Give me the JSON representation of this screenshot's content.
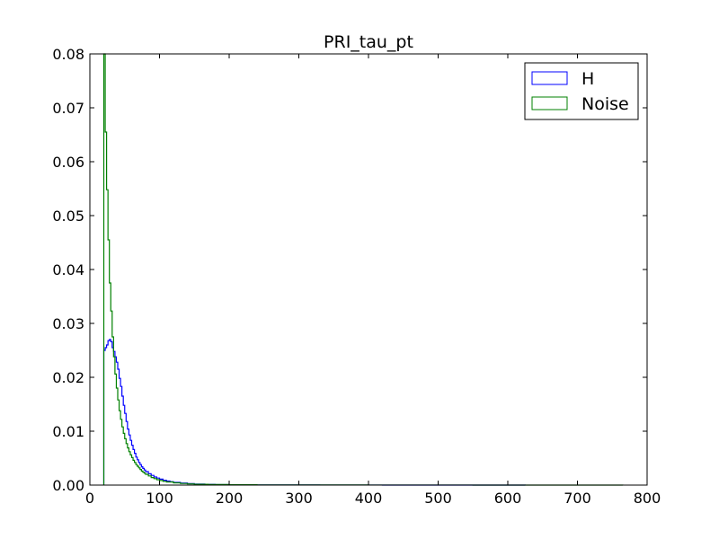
{
  "chart_data": {
    "type": "histogram",
    "title": "PRI_tau_pt",
    "xlabel": "",
    "ylabel": "",
    "xlim": [
      0,
      800
    ],
    "ylim": [
      0,
      0.08
    ],
    "x_ticks": [
      "0",
      "100",
      "200",
      "300",
      "400",
      "500",
      "600",
      "700",
      "800"
    ],
    "y_ticks": [
      "0.00",
      "0.01",
      "0.02",
      "0.03",
      "0.04",
      "0.05",
      "0.06",
      "0.07",
      "0.08"
    ],
    "legend_position": "top-right",
    "histtype": "step",
    "series": [
      {
        "name": "H",
        "color": "#0000ff",
        "x_end": 625,
        "points": [
          [
            20,
            0.025
          ],
          [
            22,
            0.0255
          ],
          [
            24,
            0.026
          ],
          [
            26,
            0.0268
          ],
          [
            28,
            0.027
          ],
          [
            30,
            0.0266
          ],
          [
            32,
            0.0255
          ],
          [
            34,
            0.0248
          ],
          [
            36,
            0.0238
          ],
          [
            38,
            0.0228
          ],
          [
            40,
            0.0215
          ],
          [
            42,
            0.0198
          ],
          [
            44,
            0.0183
          ],
          [
            46,
            0.0165
          ],
          [
            48,
            0.0148
          ],
          [
            50,
            0.0133
          ],
          [
            52,
            0.0118
          ],
          [
            54,
            0.0104
          ],
          [
            56,
            0.0093
          ],
          [
            58,
            0.0083
          ],
          [
            60,
            0.0074
          ],
          [
            62,
            0.0066
          ],
          [
            64,
            0.0059
          ],
          [
            66,
            0.0052
          ],
          [
            68,
            0.0047
          ],
          [
            70,
            0.0042
          ],
          [
            72,
            0.0038
          ],
          [
            74,
            0.0034
          ],
          [
            76,
            0.0031
          ],
          [
            78,
            0.0028
          ],
          [
            80,
            0.0025
          ],
          [
            84,
            0.0021
          ],
          [
            88,
            0.0018
          ],
          [
            92,
            0.0015
          ],
          [
            96,
            0.0013
          ],
          [
            100,
            0.0011
          ],
          [
            105,
            0.0009
          ],
          [
            110,
            0.00075
          ],
          [
            115,
            0.00062
          ],
          [
            120,
            0.0005
          ],
          [
            130,
            0.00038
          ],
          [
            140,
            0.00028
          ],
          [
            150,
            0.0002
          ],
          [
            165,
            0.00013
          ],
          [
            180,
            9e-05
          ],
          [
            200,
            5e-05
          ],
          [
            230,
            3e-05
          ],
          [
            270,
            1.5e-05
          ],
          [
            330,
            8e-06
          ],
          [
            420,
            4e-06
          ],
          [
            520,
            2e-06
          ]
        ]
      },
      {
        "name": "Noise",
        "color": "#008000",
        "x_end": 765,
        "points": [
          [
            20,
            0.08
          ],
          [
            22,
            0.0655
          ],
          [
            24,
            0.0548
          ],
          [
            26,
            0.0455
          ],
          [
            28,
            0.0375
          ],
          [
            30,
            0.0323
          ],
          [
            32,
            0.0275
          ],
          [
            34,
            0.0238
          ],
          [
            36,
            0.0206
          ],
          [
            38,
            0.018
          ],
          [
            40,
            0.0158
          ],
          [
            42,
            0.0138
          ],
          [
            44,
            0.0122
          ],
          [
            46,
            0.0108
          ],
          [
            48,
            0.0096
          ],
          [
            50,
            0.0086
          ],
          [
            52,
            0.0077
          ],
          [
            54,
            0.0069
          ],
          [
            56,
            0.0062
          ],
          [
            58,
            0.0056
          ],
          [
            60,
            0.0051
          ],
          [
            62,
            0.0046
          ],
          [
            64,
            0.0042
          ],
          [
            66,
            0.0038
          ],
          [
            68,
            0.0035
          ],
          [
            70,
            0.0032
          ],
          [
            72,
            0.0029
          ],
          [
            74,
            0.0026
          ],
          [
            76,
            0.0024
          ],
          [
            78,
            0.0022
          ],
          [
            80,
            0.002
          ],
          [
            84,
            0.0017
          ],
          [
            88,
            0.0014
          ],
          [
            92,
            0.0012
          ],
          [
            96,
            0.001
          ],
          [
            100,
            0.00085
          ],
          [
            105,
            0.0007
          ],
          [
            110,
            0.00058
          ],
          [
            120,
            0.00042
          ],
          [
            130,
            0.0003
          ],
          [
            140,
            0.00022
          ],
          [
            150,
            0.00016
          ],
          [
            170,
            0.0001
          ],
          [
            200,
            6e-05
          ],
          [
            240,
            3e-05
          ],
          [
            300,
            1.5e-05
          ],
          [
            400,
            7e-06
          ],
          [
            550,
            3e-06
          ],
          [
            700,
            1e-06
          ]
        ]
      }
    ]
  }
}
